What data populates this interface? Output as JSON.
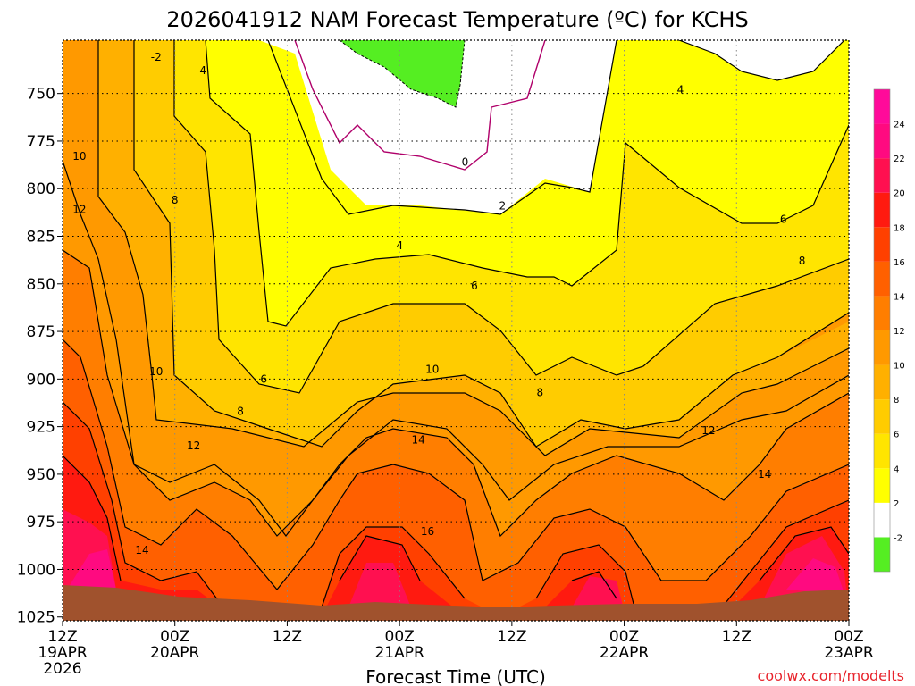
{
  "chart_data": {
    "type": "heatmap",
    "title": "2026041912 NAM Forecast Temperature (ºC) for KCHS",
    "xlabel": "Forecast Time (UTC)",
    "credit": "coolwx.com/modelts",
    "x_ticks": [
      {
        "label": "12Z",
        "sub": "19APR",
        "sub2": "2026",
        "hour": 0
      },
      {
        "label": "00Z",
        "sub": "20APR",
        "sub2": "",
        "hour": 12
      },
      {
        "label": "12Z",
        "sub": "",
        "sub2": "",
        "hour": 24
      },
      {
        "label": "00Z",
        "sub": "21APR",
        "sub2": "",
        "hour": 36
      },
      {
        "label": "12Z",
        "sub": "",
        "sub2": "",
        "hour": 48
      },
      {
        "label": "00Z",
        "sub": "22APR",
        "sub2": "",
        "hour": 60
      },
      {
        "label": "12Z",
        "sub": "",
        "sub2": "",
        "hour": 72
      },
      {
        "label": "00Z",
        "sub": "23APR",
        "sub2": "",
        "hour": 84
      }
    ],
    "y_ticks": [
      750,
      775,
      800,
      825,
      850,
      875,
      900,
      925,
      950,
      975,
      1000,
      1025
    ],
    "ylim": [
      722,
      1027
    ],
    "xlim": [
      0,
      84
    ],
    "colorbar": {
      "levels": [
        "-2",
        "2",
        "4",
        "6",
        "8",
        "10",
        "12",
        "14",
        "16",
        "18",
        "20",
        "22",
        "24"
      ],
      "colors": [
        "#55ee22",
        "#ffffff",
        "#ffff00",
        "#ffe500",
        "#ffcc00",
        "#ffb000",
        "#ff9900",
        "#ff7e00",
        "#ff6000",
        "#ff4000",
        "#ff1a10",
        "#ff1050",
        "#ff0a80",
        "#ff0a9a"
      ]
    },
    "contour_labels": [
      {
        "text": "-2",
        "hour": 10,
        "p": 731
      },
      {
        "text": "0",
        "hour": 43,
        "p": 786
      },
      {
        "text": "2",
        "hour": 47,
        "p": 809
      },
      {
        "text": "4",
        "hour": 15,
        "p": 738
      },
      {
        "text": "4",
        "hour": 36,
        "p": 830
      },
      {
        "text": "4",
        "hour": 66,
        "p": 748
      },
      {
        "text": "6",
        "hour": 21.5,
        "p": 900
      },
      {
        "text": "6",
        "hour": 44,
        "p": 851
      },
      {
        "text": "6",
        "hour": 77,
        "p": 816
      },
      {
        "text": "8",
        "hour": 12,
        "p": 806
      },
      {
        "text": "8",
        "hour": 19,
        "p": 917
      },
      {
        "text": "8",
        "hour": 51,
        "p": 907
      },
      {
        "text": "8",
        "hour": 79,
        "p": 838
      },
      {
        "text": "10",
        "hour": 1.8,
        "p": 783
      },
      {
        "text": "10",
        "hour": 10,
        "p": 896
      },
      {
        "text": "10",
        "hour": 39.5,
        "p": 895
      },
      {
        "text": "12",
        "hour": 1.8,
        "p": 811
      },
      {
        "text": "12",
        "hour": 14,
        "p": 935
      },
      {
        "text": "12",
        "hour": 69,
        "p": 927
      },
      {
        "text": "14",
        "hour": 8.5,
        "p": 990
      },
      {
        "text": "14",
        "hour": 38,
        "p": 932
      },
      {
        "text": "14",
        "hour": 75,
        "p": 950
      },
      {
        "text": "16",
        "hour": 39,
        "p": 980
      }
    ]
  }
}
